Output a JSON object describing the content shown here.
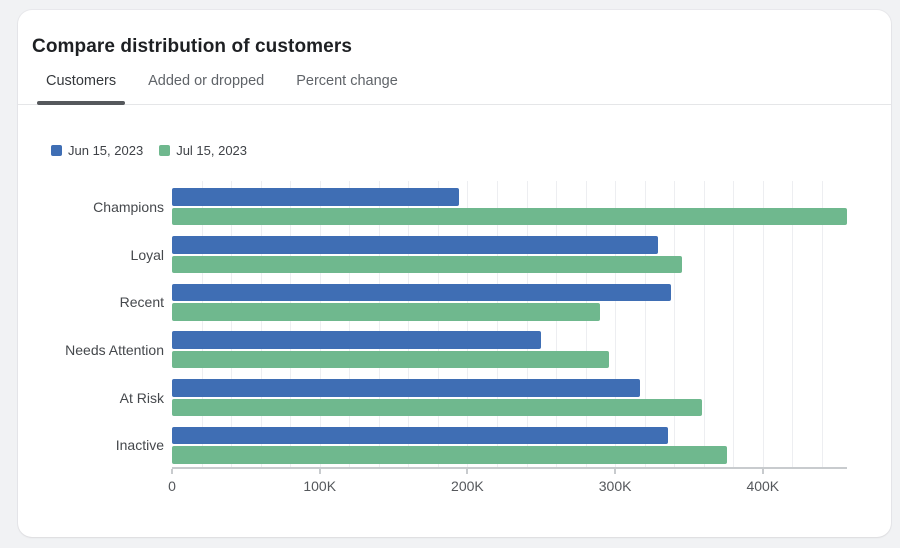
{
  "header": {
    "title": "Compare distribution of customers",
    "tabs": [
      {
        "label": "Customers",
        "active": true
      },
      {
        "label": "Added or dropped",
        "active": false
      },
      {
        "label": "Percent change",
        "active": false
      }
    ]
  },
  "legend": {
    "position": "top-left",
    "items": [
      {
        "label": "Jun 15, 2023",
        "color": "#3f6eb4"
      },
      {
        "label": "Jul 15, 2023",
        "color": "#6fb88e"
      }
    ]
  },
  "chart_data": {
    "type": "bar",
    "orientation": "horizontal",
    "title": "Compare distribution of customers",
    "xlabel": "",
    "ylabel": "",
    "grid": true,
    "gridline_step": 20000,
    "legend_position": "top-left",
    "categories": [
      "Champions",
      "Loyal",
      "Recent",
      "Needs Attention",
      "At Risk",
      "Inactive"
    ],
    "series": [
      {
        "name": "Jun 15, 2023",
        "color": "#3f6eb4",
        "values": [
          194000,
          329000,
          338000,
          250000,
          317000,
          336000
        ]
      },
      {
        "name": "Jul 15, 2023",
        "color": "#6fb88e",
        "values": [
          457000,
          345000,
          290000,
          296000,
          359000,
          376000
        ]
      }
    ],
    "xlim": [
      0,
      457000
    ],
    "x_ticks": [
      {
        "value": 0,
        "label": "0"
      },
      {
        "value": 100000,
        "label": "100K"
      },
      {
        "value": 200000,
        "label": "200K"
      },
      {
        "value": 300000,
        "label": "300K"
      },
      {
        "value": 400000,
        "label": "400K"
      }
    ]
  },
  "colors": {
    "page_bg": "#f1f2f4",
    "card_bg": "#ffffff",
    "series_jun": "#3f6eb4",
    "series_jul": "#6fb88e",
    "tab_underline": "#55585c",
    "gridline": "#edeef1",
    "axis_line": "#c8cbce"
  }
}
